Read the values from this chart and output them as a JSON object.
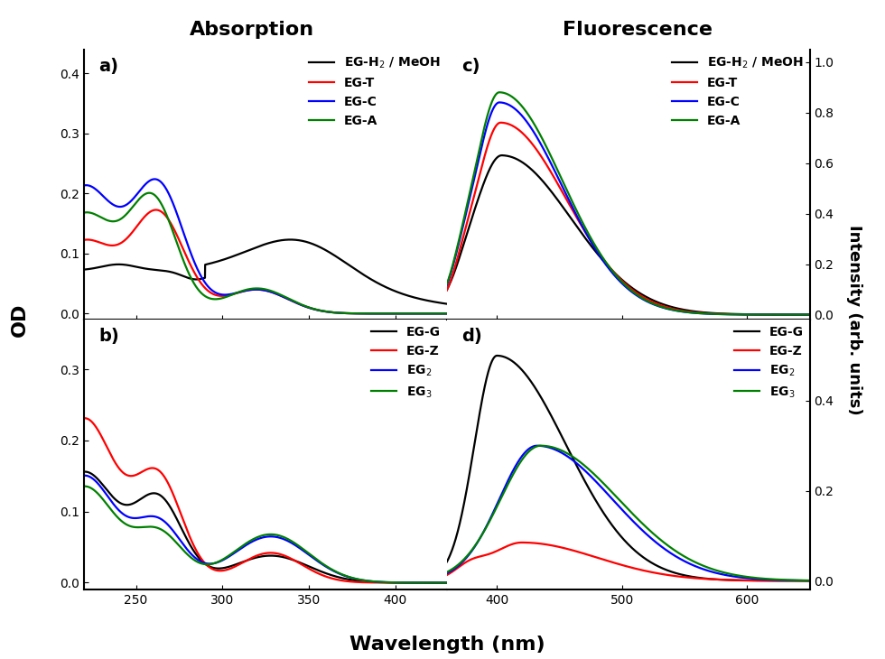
{
  "title_absorption": "Absorption",
  "title_fluorescence": "Fluorescence",
  "xlabel": "Wavelength (nm)",
  "ylabel_left": "OD",
  "ylabel_right": "Intensity (arb. units)",
  "panel_a_label": "a)",
  "panel_b_label": "b)",
  "panel_c_label": "c)",
  "panel_d_label": "d)",
  "abs_xlim": [
    220,
    430
  ],
  "fluor_xlim": [
    360,
    650
  ],
  "panel_a_yticks": [
    0.0,
    0.1,
    0.2,
    0.3,
    0.4
  ],
  "panel_b_yticks": [
    0.0,
    0.1,
    0.2,
    0.3
  ],
  "panel_c_yticks": [
    0.0,
    0.2,
    0.4,
    0.6,
    0.8,
    1.0
  ],
  "panel_d_yticks": [
    0.0,
    0.2,
    0.4
  ],
  "colors": {
    "black": "#000000",
    "red": "#ff0000",
    "blue": "#0000ff",
    "green": "#008000"
  },
  "legend_a": [
    "EG-H$_2$ / MeOH",
    "EG-T",
    "EG-C",
    "EG-A"
  ],
  "legend_b": [
    "EG-G",
    "EG-Z",
    "EG$_2$",
    "EG$_3$"
  ],
  "legend_c": [
    "EG-H$_2$ / MeOH",
    "EG-T",
    "EG-C",
    "EG-A"
  ],
  "legend_d": [
    "EG-G",
    "EG-Z",
    "EG$_2$",
    "EG$_3$"
  ]
}
